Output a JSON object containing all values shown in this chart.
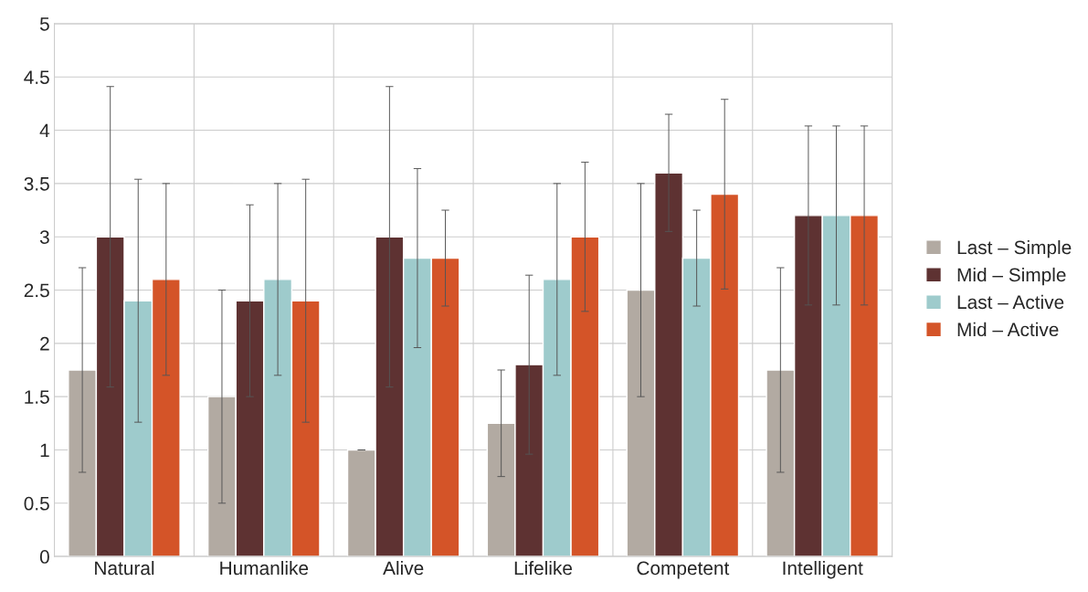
{
  "chart_data": {
    "type": "bar",
    "categories": [
      "Natural",
      "Humanlike",
      "Alive",
      "Lifelike",
      "Competent",
      "Intelligent"
    ],
    "series": [
      {
        "name": "Last – Simple",
        "color": "#b2aaa2",
        "values": [
          1.75,
          1.5,
          1.0,
          1.25,
          2.5,
          1.75
        ],
        "errors": [
          0.96,
          1.0,
          0,
          0.5,
          1.0,
          0.96
        ]
      },
      {
        "name": "Mid – Simple",
        "color": "#5e3232",
        "values": [
          3.0,
          2.4,
          3.0,
          1.8,
          3.6,
          3.2
        ],
        "errors": [
          1.41,
          0.9,
          1.41,
          0.84,
          0.55,
          0.84
        ]
      },
      {
        "name": "Last – Active",
        "color": "#9ecbcc",
        "values": [
          2.4,
          2.6,
          2.8,
          2.6,
          2.8,
          3.2
        ],
        "errors": [
          1.14,
          0.9,
          0.84,
          0.9,
          0.45,
          0.84
        ]
      },
      {
        "name": "Mid – Active",
        "color": "#d45428",
        "values": [
          2.6,
          2.4,
          2.8,
          3.0,
          3.4,
          3.2
        ],
        "errors": [
          0.9,
          1.14,
          0.45,
          0.7,
          0.89,
          0.84
        ]
      }
    ],
    "ylim": [
      0,
      5
    ],
    "yticks": [
      0,
      0.5,
      1,
      1.5,
      2,
      2.5,
      3,
      3.5,
      4,
      4.5,
      5
    ],
    "grid": true,
    "legend": "right"
  }
}
